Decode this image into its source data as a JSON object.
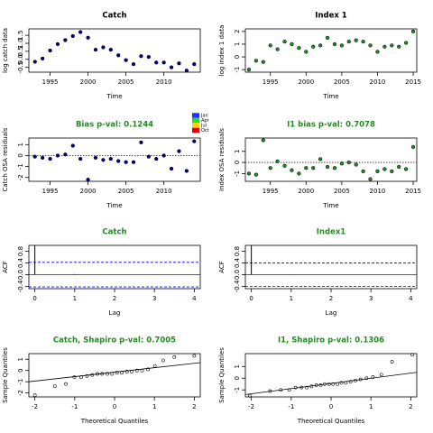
{
  "chart_data": [
    {
      "type": "scatter",
      "title": "Catch",
      "title_color": "#000000",
      "xlabel": "Time",
      "ylabel": "log catch data",
      "color": "#00008b",
      "x": [
        1993,
        1994,
        1995,
        1996,
        1997,
        1998,
        1999,
        2000,
        2001,
        2002,
        2003,
        2004,
        2005,
        2006,
        2007,
        2008,
        2009,
        2010,
        2011,
        2012,
        2013,
        2014
      ],
      "values": [
        -0.15,
        0.05,
        0.55,
        0.95,
        1.2,
        1.45,
        1.7,
        1.35,
        0.6,
        0.75,
        0.6,
        0.25,
        -0.05,
        -0.3,
        0.2,
        0.15,
        -0.2,
        -0.2,
        -0.5,
        -0.25,
        -0.7,
        -0.3
      ],
      "xlim": [
        1992.2,
        2014.8
      ],
      "xticks": [
        1995,
        2000,
        2005,
        2010
      ],
      "ylim": [
        -0.8,
        1.9
      ],
      "yticks": [
        -0.5,
        {
          "value": 0,
          "label": "0.0"
        },
        0.5,
        {
          "value": 1,
          "label": "1.0"
        },
        1.5
      ]
    },
    {
      "type": "scatter",
      "title": "Index 1",
      "title_color": "#000000",
      "xlabel": "Time",
      "ylabel": "log index 1 data",
      "color": "#228b22",
      "x": [
        1992,
        1993,
        1994,
        1995,
        1996,
        1997,
        1998,
        1999,
        2000,
        2001,
        2002,
        2003,
        2004,
        2005,
        2006,
        2007,
        2008,
        2009,
        2010,
        2011,
        2012,
        2013,
        2014,
        2015
      ],
      "values": [
        -1.0,
        -0.3,
        -0.4,
        0.9,
        0.6,
        1.2,
        1.0,
        0.7,
        0.4,
        0.8,
        0.9,
        1.5,
        1.0,
        0.9,
        1.2,
        1.3,
        1.2,
        0.9,
        0.4,
        0.8,
        0.9,
        0.8,
        1.1,
        2.0
      ],
      "xlim": [
        1991.5,
        2015.5
      ],
      "xticks": [
        1995,
        2000,
        2005,
        2010,
        2015
      ],
      "ylim": [
        -1.2,
        2.2
      ],
      "yticks": [
        -1,
        0,
        1,
        2
      ]
    },
    {
      "type": "scatter",
      "title": "Bias p-val: 0.1244",
      "title_color": "#228b22",
      "xlabel": "Time",
      "ylabel": "Catch OSA residuals",
      "color": "#00008b",
      "hline": 0,
      "x": [
        1993,
        1994,
        1995,
        1996,
        1997,
        1998,
        1999,
        2000,
        2001,
        2002,
        2003,
        2004,
        2005,
        2006,
        2007,
        2008,
        2009,
        2010,
        2011,
        2012,
        2013,
        2014
      ],
      "values": [
        -0.1,
        -0.2,
        -0.3,
        0.0,
        0.1,
        0.9,
        -0.3,
        -2.2,
        -0.2,
        -0.4,
        -0.3,
        -0.5,
        -0.6,
        -0.6,
        1.2,
        -0.1,
        -0.3,
        0.0,
        -1.2,
        0.4,
        -1.4,
        1.3
      ],
      "xlim": [
        1992.2,
        2014.8
      ],
      "xticks": [
        1995,
        2000,
        2005,
        2010
      ],
      "ylim": [
        -2.35,
        1.6
      ],
      "yticks": [
        -2,
        -1,
        0,
        1
      ],
      "legend": [
        {
          "label": "Jan",
          "color": "#2030ff"
        },
        {
          "label": "Apr",
          "color": "#20e020"
        },
        {
          "label": "Jul",
          "color": "#ffd000"
        },
        {
          "label": "Oct",
          "color": "#e00000"
        }
      ]
    },
    {
      "type": "scatter",
      "title": "I1 bias p-val: 0.7078",
      "title_color": "#228b22",
      "xlabel": "Time",
      "ylabel": "Index OSA residuals",
      "color": "#228b22",
      "hline": 0,
      "x": [
        1992,
        1993,
        1994,
        1995,
        1996,
        1997,
        1998,
        1999,
        2000,
        2001,
        2002,
        2003,
        2004,
        2005,
        2006,
        2007,
        2008,
        2009,
        2010,
        2011,
        2012,
        2013,
        2014,
        2015
      ],
      "values": [
        -1.0,
        -1.1,
        2.0,
        -0.5,
        0.1,
        -0.3,
        -0.7,
        -1.0,
        -0.5,
        -0.5,
        0.3,
        -0.4,
        -0.5,
        -0.1,
        0.0,
        -0.2,
        -0.8,
        -1.5,
        -0.8,
        -0.6,
        -0.8,
        -0.4,
        -0.6,
        1.4
      ],
      "xlim": [
        1991.5,
        2015.5
      ],
      "xticks": [
        1995,
        2000,
        2005,
        2010,
        2015
      ],
      "ylim": [
        -1.7,
        2.2
      ],
      "yticks": [
        -1,
        0,
        1
      ]
    },
    {
      "type": "acf",
      "title": "Catch",
      "title_color": "#228b22",
      "xlabel": "Lag",
      "ylabel": "ACF",
      "color": "#000000",
      "ci_color": "#0000ff",
      "x": [
        0,
        1,
        2,
        3,
        4
      ],
      "values": [
        1,
        0.02,
        0.01,
        0.005,
        0.002
      ],
      "ci": [
        -0.42,
        0.42
      ],
      "xlim": [
        -0.15,
        4.15
      ],
      "xticks": [
        0,
        1,
        2,
        3,
        4
      ],
      "ylim": [
        -0.48,
        1.0
      ],
      "yticks": [
        -0.4,
        {
          "value": 0,
          "label": "0.0"
        },
        0.4,
        0.8
      ]
    },
    {
      "type": "acf",
      "title": "Index1",
      "title_color": "#228b22",
      "xlabel": "Lag",
      "ylabel": "ACF",
      "color": "#000000",
      "ci_color": "#0000ff",
      "x": [
        0,
        1,
        2,
        3,
        4
      ],
      "values": [
        1,
        0.01,
        0.005,
        0.003,
        0.002
      ],
      "ci": [
        -0.4,
        0.4
      ],
      "xlim": [
        -0.15,
        4.15
      ],
      "xticks": [
        0,
        1,
        2,
        3,
        4
      ],
      "ylim": [
        -0.48,
        1.0
      ],
      "yticks": [
        -0.4,
        {
          "value": 0,
          "label": "0.0"
        },
        0.4,
        0.8
      ]
    },
    {
      "type": "qq",
      "title": "Catch, Shapiro p-val: 0.7005",
      "title_color": "#228b22",
      "xlabel": "Theoretical Quantiles",
      "ylabel": "Sample Quantiles",
      "color": "#000000",
      "x": [
        -2.0,
        -1.5,
        -1.22,
        -1.01,
        -0.84,
        -0.69,
        -0.56,
        -0.43,
        -0.31,
        -0.18,
        -0.06,
        0.06,
        0.18,
        0.31,
        0.43,
        0.56,
        0.69,
        0.84,
        1.01,
        1.22,
        1.5,
        2.0
      ],
      "values": [
        -2.2,
        -1.4,
        -1.2,
        -0.6,
        -0.6,
        -0.5,
        -0.4,
        -0.3,
        -0.3,
        -0.3,
        -0.3,
        -0.2,
        -0.2,
        -0.1,
        -0.1,
        0.0,
        0.0,
        0.1,
        0.4,
        0.9,
        1.2,
        1.3
      ],
      "line_x": [
        -2.15,
        2.15
      ],
      "line_y": [
        -1.0,
        0.7
      ],
      "xlim": [
        -2.15,
        2.15
      ],
      "xticks": [
        -2,
        -1,
        0,
        1,
        2
      ],
      "ylim": [
        -2.35,
        1.5
      ],
      "yticks": [
        -2,
        -1,
        0,
        1
      ]
    },
    {
      "type": "qq",
      "title": "I1, Shapiro p-val: 0.1306",
      "title_color": "#228b22",
      "xlabel": "Theoretical Quantiles",
      "ylabel": "Sample Quantiles",
      "color": "#000000",
      "x": [
        -2.04,
        -1.53,
        -1.26,
        -1.05,
        -0.89,
        -0.74,
        -0.61,
        -0.49,
        -0.37,
        -0.26,
        -0.16,
        -0.05,
        0.05,
        0.16,
        0.26,
        0.37,
        0.49,
        0.61,
        0.74,
        0.89,
        1.05,
        1.26,
        1.53,
        2.04
      ],
      "values": [
        -1.5,
        -1.1,
        -1.0,
        -1.0,
        -0.8,
        -0.8,
        -0.8,
        -0.7,
        -0.6,
        -0.6,
        -0.5,
        -0.5,
        -0.5,
        -0.5,
        -0.4,
        -0.4,
        -0.3,
        -0.2,
        -0.1,
        0.0,
        0.1,
        0.3,
        1.4,
        2.0
      ],
      "line_x": [
        -2.15,
        2.15
      ],
      "line_y": [
        -1.4,
        0.5
      ],
      "xlim": [
        -2.15,
        2.15
      ],
      "xticks": [
        -2,
        -1,
        0,
        1,
        2
      ],
      "ylim": [
        -1.6,
        2.1
      ],
      "yticks": [
        -1,
        0,
        1
      ]
    }
  ]
}
